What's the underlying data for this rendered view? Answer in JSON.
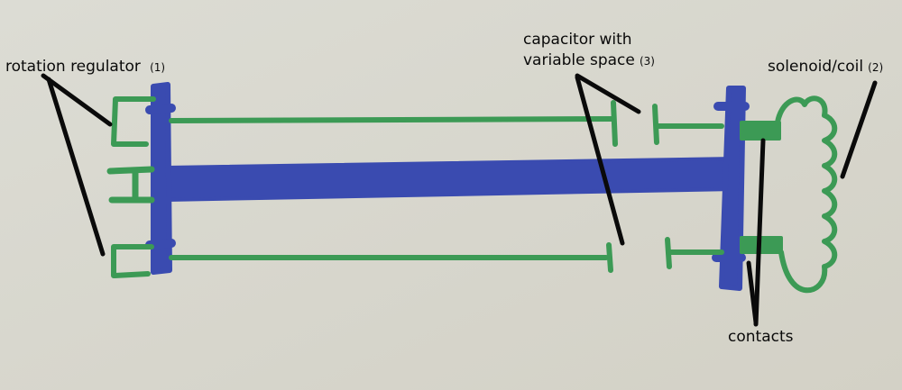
{
  "labels": {
    "rotation_regulator": {
      "text": "rotation regulator",
      "number": "(1)"
    },
    "capacitor": {
      "line1": "capacitor with",
      "line2": "variable space",
      "number": "(3)"
    },
    "solenoid": {
      "text": "solenoid/coil",
      "number": "(2)"
    },
    "contacts": {
      "text": "contacts"
    }
  },
  "colors": {
    "paper": "#d9d8cf",
    "shaft_blue": "#3a4bb0",
    "wire_green": "#3c9a55",
    "pointer_black": "#0a0a0a"
  }
}
